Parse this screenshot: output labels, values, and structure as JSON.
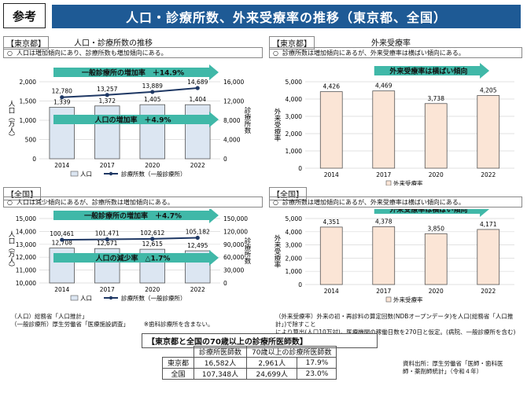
{
  "header": {
    "tag": "参考",
    "title": "人口・診療所数、外来受療率の推移（東京都、全国）"
  },
  "tokyo_left": {
    "region": "【東京都】",
    "title": "人口・診療所数の推移",
    "note": "人口は増加傾向にあり、診療所数も増加傾向にある。",
    "arrow1": "一般診療所の増加率　＋14.9%",
    "arrow2": "人口の増加率　＋4.9%",
    "ylabel_left": "人口（万人）",
    "ylabel_right": "診療所数",
    "legend_bar": "人口",
    "legend_line": "診療所数（一般診療所）"
  },
  "tokyo_right": {
    "region": "【東京都】",
    "title": "外来受療率",
    "note": "診療所数は増加傾向にあるが、外来受療率は横ばい傾向にある。",
    "arrow": "外来受療率は横ばい傾向",
    "ylabel": "外来受療率",
    "legend": "外来受療率"
  },
  "japan_left": {
    "region": "【全国】",
    "note": "人口は減少傾向にあるが、診療所数は増加傾向にある。",
    "arrow1": "一般診療所の増加率　＋4.7%",
    "arrow2": "人口の減少率　△1.7%",
    "ylabel_left": "人口（万人）",
    "ylabel_right": "診療所数",
    "legend_bar": "人口",
    "legend_line": "診療所数（一般診療所）"
  },
  "japan_right": {
    "region": "【全国】",
    "note": "診療所数は増加傾向にあるが、外来受療率は横ばい傾向にある。",
    "arrow": "外来受療率は横ばい傾向",
    "ylabel": "外来受療率",
    "legend": "外来受療率"
  },
  "chart_data": [
    {
      "type": "bar",
      "categories": [
        "2014",
        "2017",
        "2020",
        "2022"
      ],
      "series": [
        {
          "name": "人口",
          "values": [
            1339,
            1372,
            1405,
            1404
          ]
        },
        {
          "name": "診療所数（一般診療所）",
          "values": [
            12780,
            13257,
            13889,
            14689
          ],
          "type": "line"
        }
      ],
      "left_axis": {
        "ylim": [
          0,
          2000
        ],
        "ticks": [
          "0",
          "500",
          "1,000",
          "1,500",
          "2,000"
        ]
      },
      "right_axis": {
        "ylim": [
          0,
          16000
        ],
        "ticks": [
          "0",
          "4,000",
          "8,000",
          "12,000",
          "16,000"
        ]
      },
      "bar_labels": [
        "1,339",
        "1,372",
        "1,405",
        "1,404"
      ],
      "line_labels": [
        "12,780",
        "13,257",
        "13,889",
        "14,689"
      ]
    },
    {
      "type": "bar",
      "categories": [
        "2014",
        "2017",
        "2020",
        "2022"
      ],
      "series": [
        {
          "name": "外来受療率",
          "values": [
            4426,
            4469,
            3738,
            4205
          ]
        }
      ],
      "ylim": [
        0,
        5000
      ],
      "ticks": [
        "0",
        "1,000",
        "2,000",
        "3,000",
        "4,000",
        "5,000"
      ],
      "bar_labels": [
        "4,426",
        "4,469",
        "3,738",
        "4,205"
      ]
    },
    {
      "type": "bar",
      "categories": [
        "2014",
        "2017",
        "2020",
        "2022"
      ],
      "series": [
        {
          "name": "人口",
          "values": [
            12708,
            12671,
            12615,
            12495
          ]
        },
        {
          "name": "診療所数（一般診療所）",
          "values": [
            100461,
            101471,
            102612,
            105182
          ],
          "type": "line"
        }
      ],
      "left_axis": {
        "ylim": [
          10000,
          15000
        ],
        "ticks": [
          "10,000",
          "11,000",
          "12,000",
          "13,000",
          "14,000",
          "15,000"
        ]
      },
      "right_axis": {
        "ylim": [
          0,
          150000
        ],
        "ticks": [
          "0",
          "30,000",
          "60,000",
          "90,000",
          "120,000",
          "150,000"
        ]
      },
      "bar_labels": [
        "12,708",
        "12,671",
        "12,615",
        "12,495"
      ],
      "line_labels": [
        "100,461",
        "101,471",
        "102,612",
        "105,182"
      ]
    },
    {
      "type": "bar",
      "categories": [
        "2014",
        "2017",
        "2020",
        "2022"
      ],
      "series": [
        {
          "name": "外来受療率",
          "values": [
            4351,
            4378,
            3850,
            4171
          ]
        }
      ],
      "ylim": [
        0,
        5000
      ],
      "ticks": [
        "0",
        "1,000",
        "2,000",
        "3,000",
        "4,000",
        "5,000"
      ],
      "bar_labels": [
        "4,351",
        "4,378",
        "3,850",
        "4,171"
      ]
    }
  ],
  "footnote_left": [
    "（人口）総務省「人口推計」",
    "（一般診療所）厚生労働省「医療施設調査」　　　※歯科診療所を含まない。"
  ],
  "footnote_right": [
    "（外来受療率）外来の初・再診料の算定回数(NDBオープンデータ)を人口(総務省「人口推計」)で除すこと",
    "により算出(人口10万対)。医療機関の稼働日数を270日と仮定。(病院、一般診療所を含む)"
  ],
  "table": {
    "title": "【東京都と全国の70歳以上の診療所医師数】",
    "headers": [
      "",
      "診療所医師数",
      "70歳以上の診療所医師数",
      ""
    ],
    "rows": [
      [
        "東京都",
        "16,582人",
        "2,961人",
        "17.9%"
      ],
      [
        "全国",
        "107,348人",
        "24,699人",
        "23.0%"
      ]
    ],
    "source": [
      "資料出所：厚生労働省「医師・歯科医",
      "師・薬剤師統計」（令和４年）"
    ]
  },
  "colors": {
    "banner": "#1e5a95",
    "bar_left": "#dce6f2",
    "bar_right": "#fbe5d6",
    "arrow": "#40b8a8",
    "line": "#1f3864"
  }
}
